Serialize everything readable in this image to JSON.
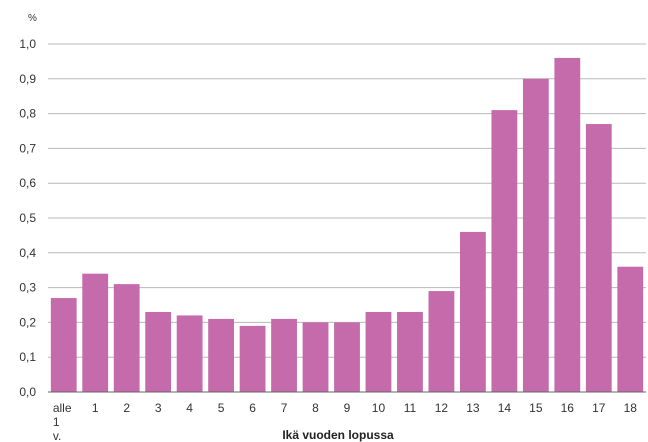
{
  "chart_data": {
    "type": "bar",
    "y_unit": "%",
    "xlabel": "Ikä vuoden lopussa",
    "ylabel": "",
    "categories": [
      "alle 1 v.",
      "1",
      "2",
      "3",
      "4",
      "5",
      "6",
      "7",
      "8",
      "9",
      "10",
      "11",
      "12",
      "13",
      "14",
      "15",
      "16",
      "17",
      "18"
    ],
    "values": [
      0.27,
      0.34,
      0.31,
      0.23,
      0.22,
      0.21,
      0.19,
      0.21,
      0.2,
      0.2,
      0.23,
      0.23,
      0.29,
      0.46,
      0.81,
      0.9,
      0.96,
      0.77,
      0.36
    ],
    "ylim": [
      0,
      1.0
    ],
    "yticks": [
      "0,0",
      "0,1",
      "0,2",
      "0,3",
      "0,4",
      "0,5",
      "0,6",
      "0,7",
      "0,8",
      "0,9",
      "1,0"
    ],
    "grid": true,
    "colors": {
      "bar": "#c56aaa",
      "grid": "#b8b8b8",
      "axis": "#666666"
    }
  }
}
